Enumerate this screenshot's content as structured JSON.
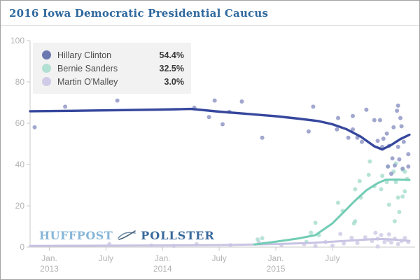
{
  "title": {
    "text": "2016 Iowa Democratic Presidential Caucus"
  },
  "legend": {
    "items": [
      {
        "name": "Hillary Clinton",
        "value": "54.4%",
        "swatch": "#6c79b0"
      },
      {
        "name": "Bernie Sanders",
        "value": "32.5%",
        "swatch": "#b2e0d2"
      },
      {
        "name": "Martin O'Malley",
        "value": "3.0%",
        "swatch": "#cfcbe7"
      }
    ]
  },
  "watermark": {
    "left": "HUFFPOST",
    "right": "POLLSTER",
    "icon": "pollster-bird-icon"
  },
  "colors": {
    "title": "#2e689d",
    "axis": "#c9c9c9",
    "tick_label": "#b3b3b3",
    "legend_bg": "#f2f2f2",
    "border": "#a3a3a3"
  },
  "chart_data": {
    "type": "line",
    "style": "trend-lines-with-scatter",
    "title": "2016 Iowa Democratic Presidential Caucus",
    "xlabel": "",
    "ylabel": "",
    "xlim": [
      2012.83,
      2016.23
    ],
    "ylim": [
      0,
      100
    ],
    "grid": false,
    "legend_position": "top-left",
    "y_ticks": [
      0,
      20,
      40,
      60,
      80,
      100
    ],
    "x_ticks": [
      {
        "t": 2013.0,
        "label": "Jan.",
        "sublabel": "2013"
      },
      {
        "t": 2013.5,
        "label": "July",
        "sublabel": ""
      },
      {
        "t": 2014.0,
        "label": "Jan.",
        "sublabel": "2014"
      },
      {
        "t": 2014.5,
        "label": "July",
        "sublabel": ""
      },
      {
        "t": 2015.0,
        "label": "Jan.",
        "sublabel": "2015"
      },
      {
        "t": 2015.5,
        "label": "July",
        "sublabel": ""
      }
    ],
    "series": [
      {
        "name": "Hillary Clinton",
        "final_value": 54.4,
        "line_color": "#36479d",
        "dot_color": "#8991c2",
        "line_width": 3.4,
        "trend": [
          [
            2012.83,
            65.8
          ],
          [
            2013.2,
            66.0
          ],
          [
            2013.6,
            66.3
          ],
          [
            2014.0,
            66.6
          ],
          [
            2014.25,
            66.9
          ],
          [
            2014.5,
            65.6
          ],
          [
            2014.75,
            64.5
          ],
          [
            2015.0,
            63.4
          ],
          [
            2015.2,
            62.2
          ],
          [
            2015.38,
            61.0
          ],
          [
            2015.5,
            59.5
          ],
          [
            2015.62,
            57.2
          ],
          [
            2015.75,
            53.5
          ],
          [
            2015.87,
            48.8
          ],
          [
            2015.94,
            47.3
          ],
          [
            2016.02,
            49.5
          ],
          [
            2016.1,
            52.3
          ],
          [
            2016.18,
            54.4
          ]
        ],
        "points": [
          [
            2012.87,
            58
          ],
          [
            2013.14,
            68
          ],
          [
            2013.6,
            71
          ],
          [
            2014.28,
            67.5
          ],
          [
            2014.46,
            71
          ],
          [
            2014.7,
            70.5
          ],
          [
            2014.41,
            63
          ],
          [
            2014.59,
            65.5
          ],
          [
            2014.53,
            59.5
          ],
          [
            2014.88,
            53
          ],
          [
            2015.33,
            68
          ],
          [
            2015.29,
            56
          ],
          [
            2015.54,
            57
          ],
          [
            2015.55,
            62.5
          ],
          [
            2015.68,
            63.5
          ],
          [
            2015.8,
            66.5
          ],
          [
            2015.87,
            61.5
          ],
          [
            2015.92,
            61.5
          ],
          [
            2015.68,
            57
          ],
          [
            2015.64,
            53
          ],
          [
            2015.72,
            53
          ],
          [
            2015.76,
            51
          ],
          [
            2015.9,
            51.5
          ],
          [
            2015.95,
            52.5
          ],
          [
            2015.98,
            55
          ],
          [
            2016.04,
            58
          ],
          [
            2016.07,
            66
          ],
          [
            2016.1,
            62.5
          ],
          [
            2016.11,
            58.5
          ],
          [
            2016.13,
            51
          ],
          [
            2015.94,
            48.5
          ],
          [
            2016.0,
            49
          ],
          [
            2016.08,
            48.5
          ],
          [
            2016.03,
            43
          ],
          [
            2016.09,
            42.5
          ],
          [
            2016.17,
            45
          ],
          [
            2015.99,
            39
          ],
          [
            2016.05,
            39.5
          ],
          [
            2016.12,
            38
          ],
          [
            2016.17,
            39
          ],
          [
            2016.08,
            68.5
          ],
          [
            2016.02,
            35.5
          ]
        ]
      },
      {
        "name": "Bernie Sanders",
        "final_value": 32.5,
        "line_color": "#72ccb4",
        "dot_color": "#a6dccd",
        "line_width": 3,
        "trend": [
          [
            2014.81,
            1.3
          ],
          [
            2015.0,
            2.6
          ],
          [
            2015.2,
            4.2
          ],
          [
            2015.35,
            5.8
          ],
          [
            2015.5,
            11.5
          ],
          [
            2015.6,
            17.0
          ],
          [
            2015.7,
            22.5
          ],
          [
            2015.8,
            27.5
          ],
          [
            2015.9,
            31.0
          ],
          [
            2015.97,
            32.6
          ],
          [
            2016.08,
            32.7
          ],
          [
            2016.18,
            32.5
          ]
        ],
        "points": [
          [
            2014.84,
            3.7
          ],
          [
            2014.88,
            4.3
          ],
          [
            2015.27,
            2.5
          ],
          [
            2015.31,
            7
          ],
          [
            2015.38,
            5.8
          ],
          [
            2015.35,
            11.8
          ],
          [
            2015.55,
            21.5
          ],
          [
            2015.59,
            17.5
          ],
          [
            2015.69,
            11.5
          ],
          [
            2015.7,
            12.5
          ],
          [
            2015.74,
            32
          ],
          [
            2015.7,
            28
          ],
          [
            2015.75,
            24
          ],
          [
            2015.82,
            35
          ],
          [
            2015.83,
            41.5
          ],
          [
            2015.87,
            29.5
          ],
          [
            2015.93,
            28
          ],
          [
            2015.94,
            34.5
          ],
          [
            2015.99,
            39
          ],
          [
            2016.04,
            36.5
          ],
          [
            2016.12,
            37.5
          ],
          [
            2016.14,
            36.5
          ],
          [
            2015.98,
            31.5
          ],
          [
            2016.06,
            31.5
          ],
          [
            2016.12,
            24.5
          ],
          [
            2016.08,
            24
          ],
          [
            2016.0,
            20.5
          ],
          [
            2016.14,
            27
          ],
          [
            2016.06,
            40.5
          ],
          [
            2016.09,
            17
          ],
          [
            2016.05,
            12.5
          ],
          [
            2016.16,
            33
          ]
        ]
      },
      {
        "name": "Martin O'Malley",
        "final_value": 3.0,
        "line_color": "#c7c3e3",
        "dot_color": "#cdc9e5",
        "line_width": 3,
        "trend": [
          [
            2012.83,
            0.6
          ],
          [
            2013.5,
            0.7
          ],
          [
            2014.0,
            0.8
          ],
          [
            2014.5,
            1.0
          ],
          [
            2014.81,
            1.3
          ],
          [
            2015.0,
            1.5
          ],
          [
            2015.3,
            2.0
          ],
          [
            2015.5,
            2.6
          ],
          [
            2015.7,
            3.3
          ],
          [
            2015.85,
            3.8
          ],
          [
            2015.95,
            3.9
          ],
          [
            2016.05,
            3.6
          ],
          [
            2016.18,
            3.0
          ]
        ],
        "points": [
          [
            2013.53,
            1.5
          ],
          [
            2013.9,
            0.8
          ],
          [
            2014.1,
            0.6
          ],
          [
            2014.3,
            1.4
          ],
          [
            2014.6,
            0.9
          ],
          [
            2014.85,
            2.3
          ],
          [
            2015.05,
            1.0
          ],
          [
            2015.25,
            1.4
          ],
          [
            2015.44,
            2.4
          ],
          [
            2015.5,
            0.7
          ],
          [
            2015.57,
            6.4
          ],
          [
            2015.6,
            1.8
          ],
          [
            2015.67,
            4.5
          ],
          [
            2015.72,
            2.0
          ],
          [
            2015.79,
            4.7
          ],
          [
            2015.85,
            3.0
          ],
          [
            2015.88,
            6.9
          ],
          [
            2015.9,
            4.1
          ],
          [
            2015.9,
            0.3
          ],
          [
            2015.93,
            5.8
          ],
          [
            2015.96,
            2.4
          ],
          [
            2015.99,
            3.5
          ],
          [
            2016.02,
            2.2
          ],
          [
            2016.05,
            4.1
          ],
          [
            2016.08,
            1.5
          ],
          [
            2016.11,
            3.0
          ],
          [
            2016.14,
            4.4
          ],
          [
            2016.17,
            2.4
          ],
          [
            2016.0,
            6.2
          ],
          [
            2015.35,
            0.5
          ]
        ]
      }
    ]
  }
}
